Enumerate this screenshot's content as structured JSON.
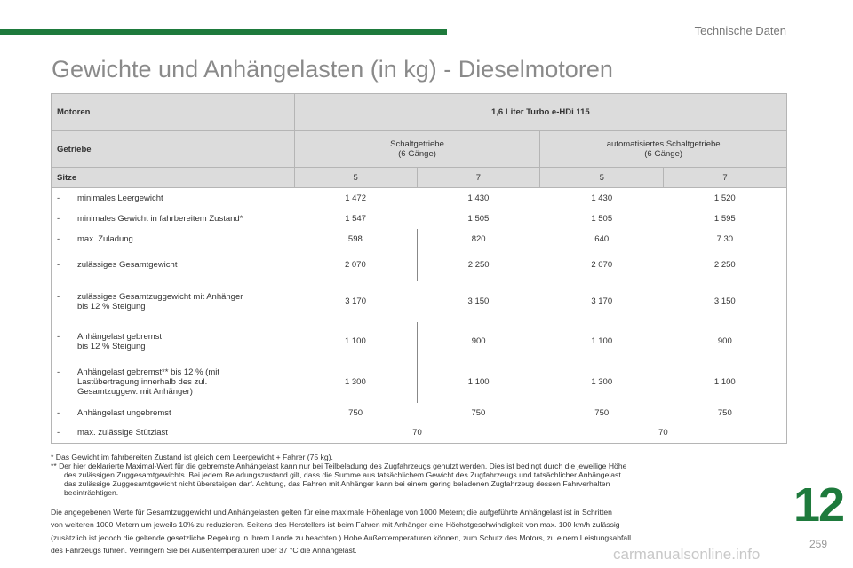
{
  "header": {
    "section": "Technische Daten",
    "title": "Gewichte und Anhängelasten (in kg) - Dieselmotoren"
  },
  "table": {
    "motoren_label": "Motoren",
    "engine": "1,6 Liter Turbo e-HDi 115",
    "getriebe_label": "Getriebe",
    "gear1_line1": "Schaltgetriebe",
    "gear1_line2": "(6 Gänge)",
    "gear2_line1": "automatisiertes Schaltgetriebe",
    "gear2_line2": "(6 Gänge)",
    "sitze_label": "Sitze",
    "seats": [
      "5",
      "7",
      "5",
      "7"
    ],
    "rows": [
      {
        "label": "minimales Leergewicht",
        "values": [
          "1 472",
          "1 430",
          "1 430",
          "1 520"
        ]
      },
      {
        "label": "minimales Gewicht in fahrbereitem Zustand*",
        "values": [
          "1 547",
          "1 505",
          "1 505",
          "1 595"
        ]
      },
      {
        "label": "max. Zuladung",
        "values": [
          "598",
          "820",
          "640",
          "7 30"
        ]
      },
      {
        "label": "zulässiges Gesamtgewicht",
        "values": [
          "2 070",
          "2 250",
          "2 070",
          "2 250"
        ]
      },
      {
        "label": "zulässiges Gesamtzuggewicht mit Anhänger",
        "label2": "bis 12 % Steigung",
        "values": [
          "3 170",
          "3 150",
          "3 170",
          "3 150"
        ]
      },
      {
        "label": "Anhängelast gebremst",
        "label2": "bis 12 % Steigung",
        "values": [
          "1 100",
          "900",
          "1 100",
          "900"
        ]
      },
      {
        "label": "Anhängelast gebremst** bis 12 % (mit",
        "label2": "Lastübertragung innerhalb des zul.",
        "label3": "Gesamtzuggew. mit Anhänger)",
        "values": [
          "1 300",
          "1 100",
          "1 300",
          "1 100"
        ]
      },
      {
        "label": "Anhängelast ungebremst",
        "values": [
          "750",
          "750",
          "750",
          "750"
        ]
      }
    ],
    "last_row": {
      "label": "max. zulässige Stützlast",
      "values": [
        "70",
        "70"
      ]
    },
    "dash": "-"
  },
  "notes": {
    "n1": "* Das Gewicht im fahrbereiten Zustand ist gleich dem Leergewicht + Fahrer (75 kg).",
    "n2a": "** Der hier deklarierte Maximal-Wert für die gebremste Anhängelast kann nur bei Teilbeladung des Zugfahrzeugs genutzt werden. Dies ist bedingt durch die jeweilige Höhe",
    "n2b": "des zulässigen Zuggesamtgewichts. Bei jedem Beladungszustand gilt, dass die Summe aus tatsächlichem Gewicht des Zugfahrzeugs und tatsächlicher Anhängelast",
    "n2c": "das zulässige Zuggesamtgewicht nicht übersteigen darf. Achtung, das Fahren mit Anhänger kann bei einem gering beladenen Zugfahrzeug dessen Fahrverhalten",
    "n2d": "beeinträchtigen."
  },
  "paragraph": {
    "l1": "Die angegebenen Werte für Gesamtzuggewicht und Anhängelasten gelten für eine maximale Höhenlage von 1000 Metern; die aufgeführte Anhängelast ist in Schritten",
    "l2": "von weiteren 1000 Metern um jeweils 10% zu reduzieren. Seitens des Herstellers ist beim Fahren mit Anhänger eine Höchstgeschwindigkeit von max. 100 km/h zulässig",
    "l3": "(zusätzlich ist jedoch die geltende gesetzliche Regelung in Ihrem Lande zu beachten.) Hohe Außentemperaturen können, zum Schutz des Motors, zu einem Leistungsabfall",
    "l4": "des Fahrzeugs führen. Verringern Sie bei Außentemperaturen über 37 °C die Anhängelast."
  },
  "footer": {
    "chapter": "12",
    "page": "259",
    "watermark": "carmanualsonline.info"
  },
  "colors": {
    "accent": "#1e7a3c",
    "header_bg": "#dcdcdc",
    "title": "#8a8a8a"
  }
}
